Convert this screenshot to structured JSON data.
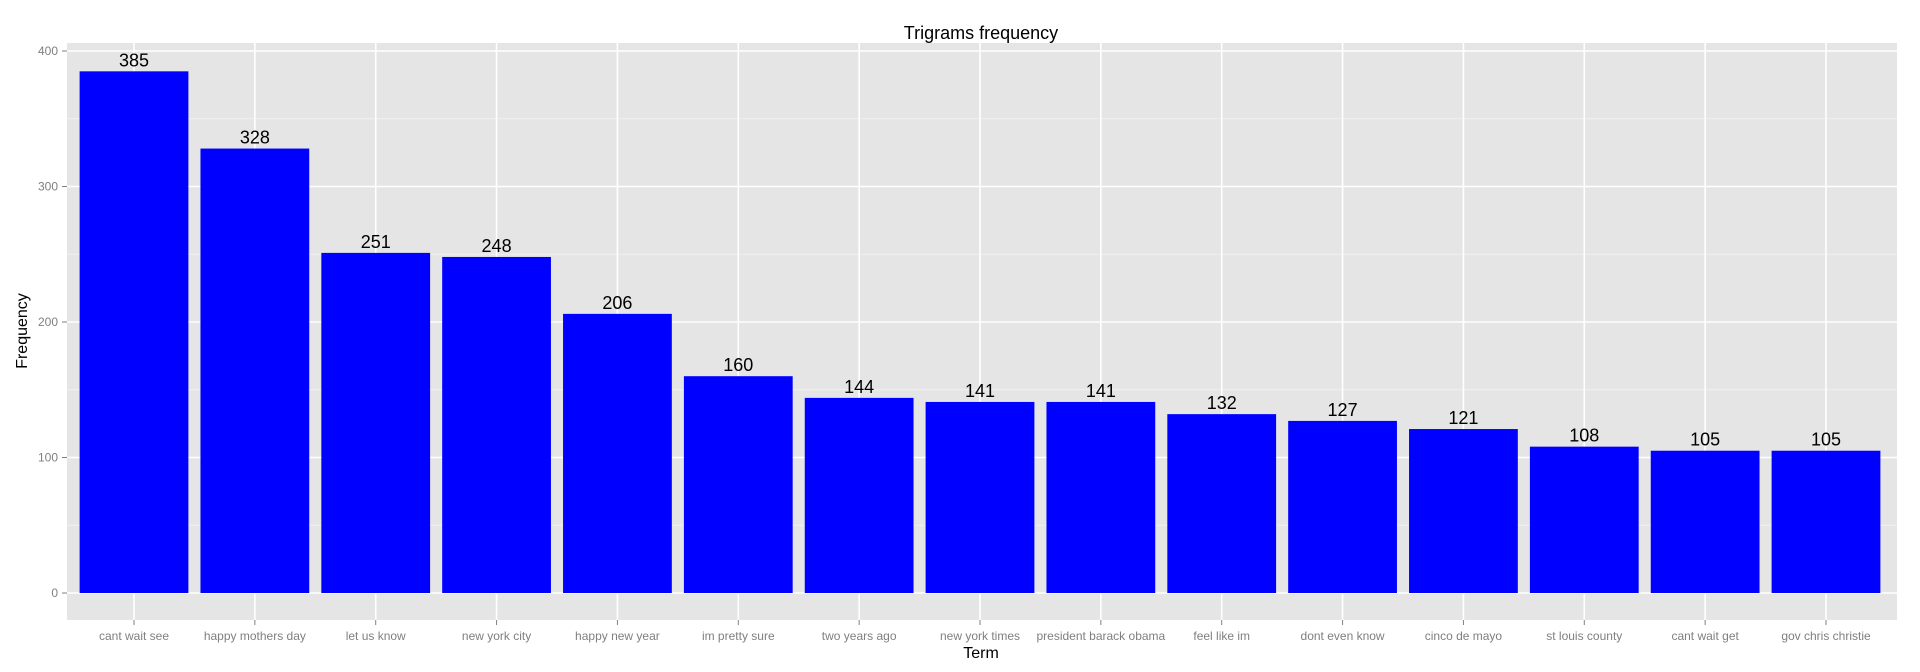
{
  "chart_data": {
    "type": "bar",
    "title": "Trigrams frequency",
    "xlabel": "Term",
    "ylabel": "Frequency",
    "categories": [
      "cant wait see",
      "happy mothers day",
      "let us know",
      "new york city",
      "happy new year",
      "im pretty sure",
      "two years ago",
      "new york times",
      "president barack obama",
      "feel like im",
      "dont even know",
      "cinco de mayo",
      "st louis county",
      "cant wait get",
      "gov chris christie"
    ],
    "values": [
      385,
      328,
      251,
      248,
      206,
      160,
      144,
      141,
      141,
      132,
      127,
      121,
      108,
      105,
      105
    ],
    "ylim": [
      0,
      400
    ],
    "yticks": [
      0,
      100,
      200,
      300,
      400
    ],
    "grid": true,
    "colors": {
      "bar": "#0000ff",
      "panel": "#e5e5e5",
      "grid_major": "#ffffff",
      "grid_minor": "#f2f2f2"
    }
  }
}
